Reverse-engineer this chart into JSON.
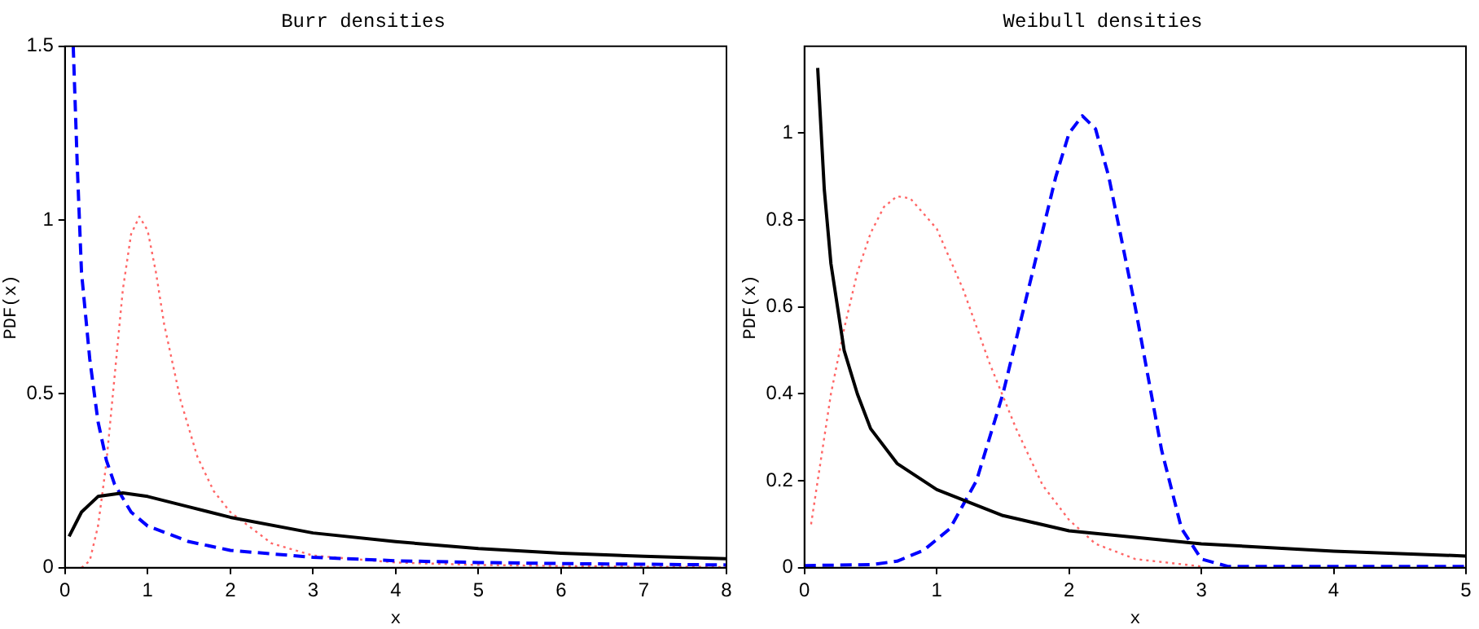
{
  "chart_data": [
    {
      "type": "line",
      "title": "Burr densities",
      "xlabel": "x",
      "ylabel": "PDF(x)",
      "xlim": [
        0,
        8
      ],
      "xticks": [
        0,
        1,
        2,
        3,
        4,
        5,
        6,
        7,
        8
      ],
      "ylim": [
        0,
        1.5
      ],
      "yticks": [
        0,
        0.5,
        1,
        1.5
      ],
      "grid": false,
      "legend": false,
      "marker": "none",
      "series": [
        {
          "color": "#000000",
          "line_style": "solid",
          "x": [
            0.05,
            0.2,
            0.4,
            0.7,
            1,
            1.5,
            2,
            3,
            4,
            5,
            6,
            7,
            8
          ],
          "values": [
            0.09,
            0.16,
            0.205,
            0.215,
            0.205,
            0.175,
            0.145,
            0.1,
            0.075,
            0.055,
            0.042,
            0.033,
            0.026
          ]
        },
        {
          "color": "#0000ff",
          "line_style": "dashed",
          "x": [
            0.1,
            0.15,
            0.2,
            0.3,
            0.4,
            0.5,
            0.6,
            0.8,
            1,
            1.5,
            2,
            3,
            4,
            5,
            6,
            7,
            8
          ],
          "values": [
            1.5,
            1.15,
            0.85,
            0.6,
            0.42,
            0.31,
            0.24,
            0.16,
            0.12,
            0.075,
            0.05,
            0.03,
            0.02,
            0.015,
            0.012,
            0.01,
            0.008
          ]
        },
        {
          "color": "#ff6666",
          "line_style": "dotted",
          "x": [
            0.2,
            0.3,
            0.4,
            0.5,
            0.6,
            0.7,
            0.8,
            0.9,
            1,
            1.1,
            1.2,
            1.4,
            1.6,
            1.8,
            2,
            2.5,
            3,
            4,
            5,
            6,
            7,
            8
          ],
          "values": [
            0,
            0.02,
            0.12,
            0.3,
            0.55,
            0.8,
            0.96,
            1.01,
            0.97,
            0.85,
            0.7,
            0.48,
            0.32,
            0.22,
            0.16,
            0.07,
            0.035,
            0.015,
            0.008,
            0.005,
            0.003,
            0.002
          ]
        }
      ]
    },
    {
      "type": "line",
      "title": "Weibull densities",
      "xlabel": "x",
      "ylabel": "PDF(x)",
      "xlim": [
        0,
        5
      ],
      "xticks": [
        0,
        1,
        2,
        3,
        4,
        5
      ],
      "ylim": [
        0,
        1.2
      ],
      "yticks": [
        0,
        0.2,
        0.4,
        0.6,
        0.8,
        1
      ],
      "grid": false,
      "legend": false,
      "marker": "none",
      "series": [
        {
          "color": "#000000",
          "line_style": "solid",
          "x": [
            0.1,
            0.15,
            0.2,
            0.3,
            0.4,
            0.5,
            0.7,
            1,
            1.5,
            2,
            3,
            4,
            5
          ],
          "values": [
            1.15,
            0.87,
            0.7,
            0.5,
            0.4,
            0.32,
            0.24,
            0.18,
            0.12,
            0.085,
            0.055,
            0.038,
            0.027
          ]
        },
        {
          "color": "#ff6666",
          "line_style": "dotted",
          "x": [
            0.05,
            0.1,
            0.2,
            0.3,
            0.4,
            0.5,
            0.6,
            0.7,
            0.8,
            1,
            1.2,
            1.4,
            1.6,
            1.8,
            2,
            2.2,
            2.5,
            3
          ],
          "values": [
            0.1,
            0.2,
            0.4,
            0.55,
            0.68,
            0.77,
            0.83,
            0.855,
            0.85,
            0.78,
            0.64,
            0.47,
            0.32,
            0.19,
            0.11,
            0.055,
            0.02,
            0.003
          ]
        },
        {
          "color": "#0000ff",
          "line_style": "dashed",
          "x": [
            0,
            0.5,
            0.7,
            0.9,
            1.1,
            1.3,
            1.5,
            1.7,
            1.9,
            2,
            2.1,
            2.2,
            2.3,
            2.5,
            2.7,
            2.85,
            3,
            3.2,
            3.5,
            5
          ],
          "values": [
            0.005,
            0.007,
            0.015,
            0.04,
            0.09,
            0.2,
            0.4,
            0.65,
            0.9,
            1,
            1.04,
            1.01,
            0.9,
            0.6,
            0.27,
            0.09,
            0.02,
            0.003,
            0.003,
            0.003
          ]
        }
      ]
    }
  ]
}
